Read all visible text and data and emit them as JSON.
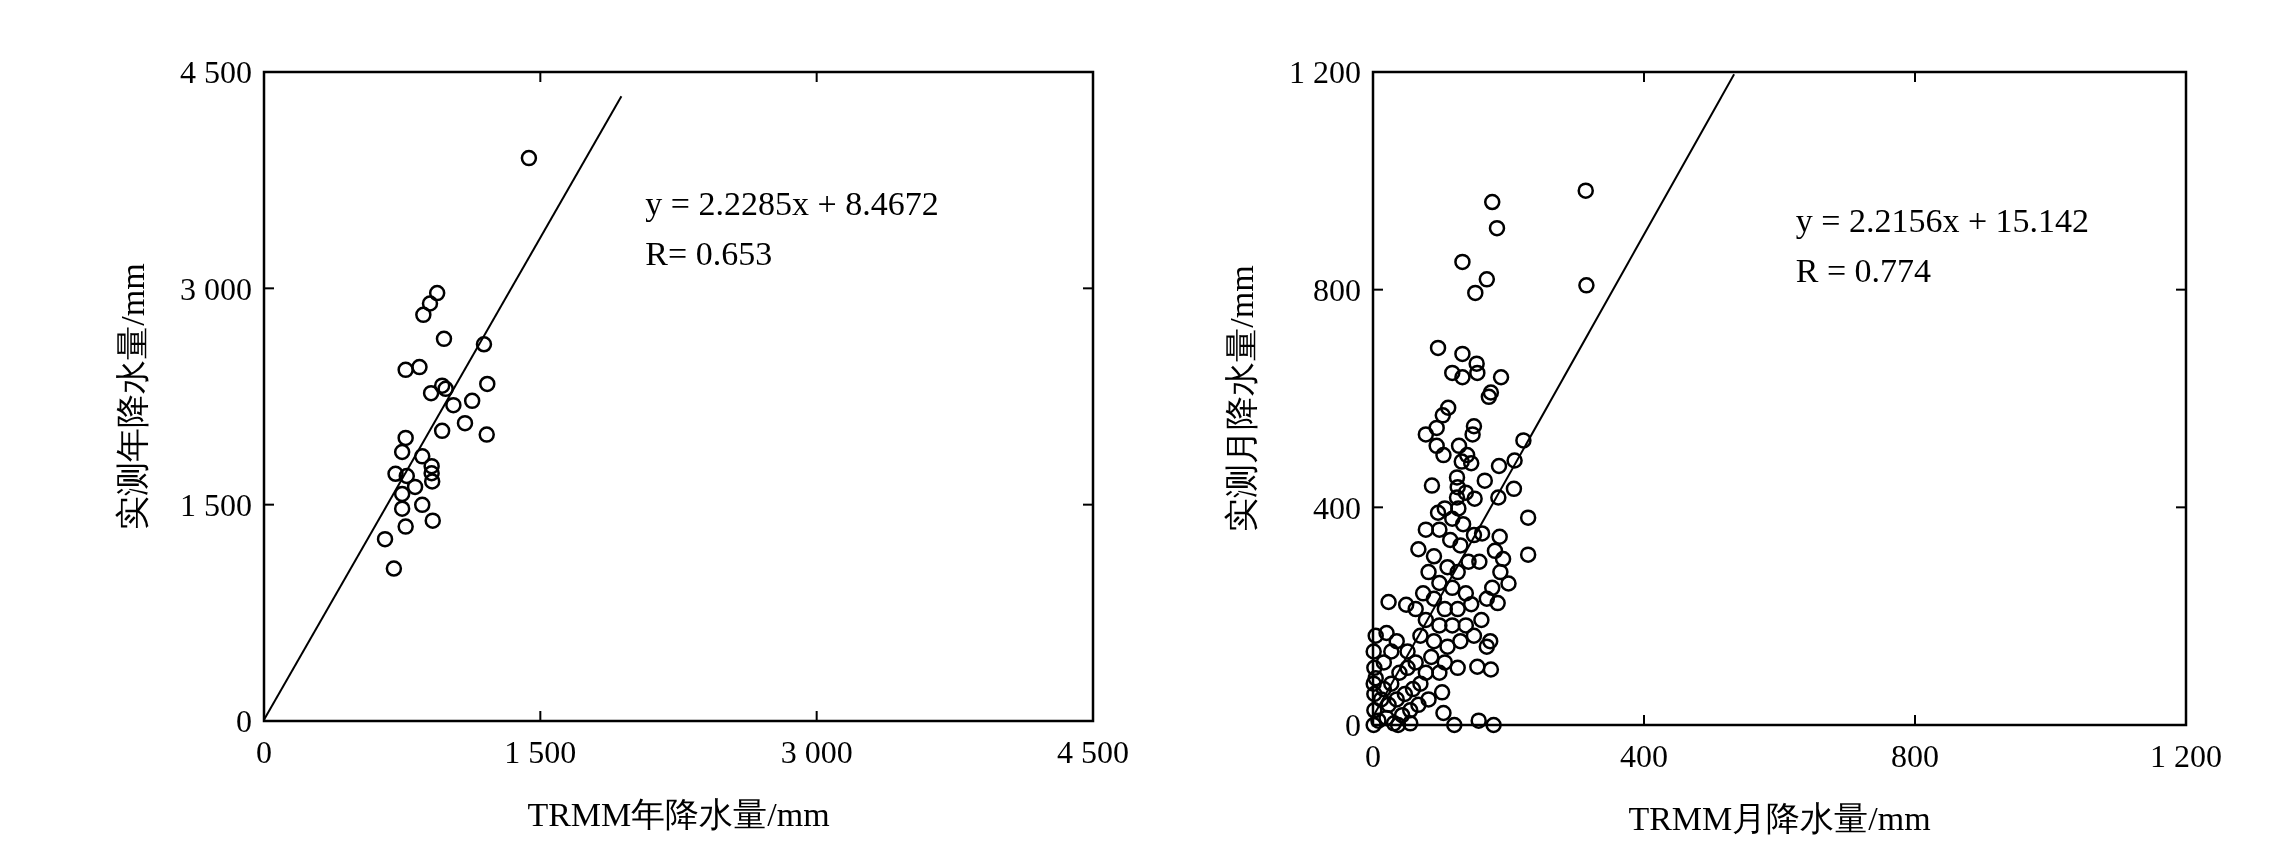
{
  "chart_data": [
    {
      "type": "scatter",
      "xlabel": "TRMM年降水量/mm",
      "ylabel": "实测年降水量/mm",
      "xlim": [
        0,
        4500
      ],
      "ylim": [
        0,
        4500
      ],
      "xticks": [
        0,
        {
          "value": 1500,
          "label": "1 500"
        },
        {
          "value": 3000,
          "label": "3 000"
        },
        {
          "value": 4500,
          "label": "4 500"
        }
      ],
      "yticks": [
        0,
        {
          "value": 1500,
          "label": "1 500"
        },
        {
          "value": 3000,
          "label": "3 000"
        },
        {
          "value": 4500,
          "label": "4 500"
        }
      ],
      "grid": false,
      "annotations": [
        "y = 2.2285x + 8.4672",
        "R= 0.653"
      ],
      "series": [
        {
          "marker": "circle",
          "color": "#000000",
          "x": [
            1438,
            940,
            901,
            865,
            977,
            1194,
            769,
            844,
            1212,
            967,
            986,
            907,
            1028,
            1130,
            1091,
            967,
            1209,
            769,
            750,
            859,
            910,
            910,
            714,
            775,
            913,
            820,
            750,
            750,
            859,
            769,
            916,
            657,
            705
          ],
          "values": [
            3903,
            2967,
            2895,
            2816,
            2650,
            2612,
            2435,
            2454,
            2337,
            2325,
            2303,
            2273,
            2190,
            2220,
            2065,
            2012,
            1986,
            1963,
            1865,
            1835,
            1767,
            1718,
            1714,
            1699,
            1661,
            1623,
            1574,
            1472,
            1499,
            1348,
            1389,
            1261,
            1057
          ]
        },
        {
          "type": "line",
          "color": "#000000",
          "line_style": "solid",
          "x": [
            0,
            1940
          ],
          "values": [
            8,
            4332
          ]
        }
      ]
    },
    {
      "type": "scatter",
      "xlabel": "TRMM月降水量/mm",
      "ylabel": "实测月降水量/mm",
      "xlim": [
        0,
        1200
      ],
      "ylim": [
        0,
        1200
      ],
      "xticks": [
        0,
        400,
        800,
        {
          "value": 1200,
          "label": "1 200"
        }
      ],
      "yticks": [
        0,
        400,
        800,
        {
          "value": 1200,
          "label": "1 200"
        }
      ],
      "grid": false,
      "annotations": [
        "y = 2.2156x + 15.142",
        "R = 0.774"
      ],
      "series": [
        {
          "marker": "circle",
          "color": "#000000",
          "x": [
            314,
            176,
            183,
            132,
            168,
            151,
            315,
            96,
            132,
            153,
            117,
            154,
            132,
            189,
            174,
            171,
            111,
            103,
            149,
            147,
            94,
            78,
            94,
            222,
            127,
            104,
            139,
            131,
            145,
            186,
            209,
            87,
            124,
            165,
            208,
            185,
            124,
            150,
            96,
            126,
            229,
            78,
            161,
            187,
            67,
            229,
            192,
            200,
            23,
            49,
            184,
            173,
            154,
            174,
            102,
            104,
            156,
            178,
            120,
            37,
            98,
            114,
            129,
            90,
            110,
            125,
            141,
            82,
            98,
            117,
            137,
            74,
            90,
            106,
            125,
            145,
            63,
            78,
            98,
            117,
            137,
            160,
            70,
            90,
            110,
            129,
            149,
            86,
            106,
            125,
            98,
            168,
            157,
            180,
            188,
            176,
            168,
            133,
            149,
            117,
            106,
            137,
            125,
            2,
            4,
            16,
            27,
            39,
            51,
            12,
            23,
            35,
            47,
            59,
            70,
            2,
            8,
            20,
            31,
            43,
            55,
            67,
            2,
            4,
            20,
            35,
            27,
            16,
            51,
            63,
            78,
            82,
            55,
            1,
            1,
            1
          ],
          "values": [
            982,
            961,
            913,
            851,
            819,
            794,
            808,
            693,
            682,
            664,
            647,
            647,
            639,
            639,
            611,
            603,
            583,
            569,
            549,
            534,
            546,
            534,
            513,
            523,
            513,
            496,
            496,
            484,
            481,
            476,
            486,
            440,
            455,
            449,
            434,
            418,
            418,
            416,
            390,
            398,
            381,
            359,
            352,
            346,
            323,
            313,
            305,
            260,
            226,
            221,
            224,
            154,
            107,
            102,
            60,
            22,
            8,
            0,
            0,
            0,
            359,
            340,
            330,
            310,
            290,
            281,
            300,
            281,
            261,
            252,
            242,
            242,
            232,
            213,
            213,
            222,
            213,
            193,
            183,
            183,
            183,
            193,
            164,
            154,
            144,
            154,
            164,
            125,
            115,
            105,
            96,
            144,
            300,
            320,
            281,
            252,
            232,
            369,
            349,
            379,
            398,
            427,
            437,
            105,
            86,
            66,
            76,
            96,
            105,
            47,
            37,
            47,
            57,
            66,
            76,
            27,
            8,
            13,
            3,
            18,
            27,
            37,
            57,
            164,
            169,
            154,
            135,
            115,
            135,
            115,
            96,
            47,
            3,
            0,
            76,
            135
          ]
        },
        {
          "type": "line",
          "color": "#000000",
          "line_style": "solid",
          "x": [
            0,
            533
          ],
          "values": [
            15,
            1196
          ]
        }
      ]
    }
  ]
}
